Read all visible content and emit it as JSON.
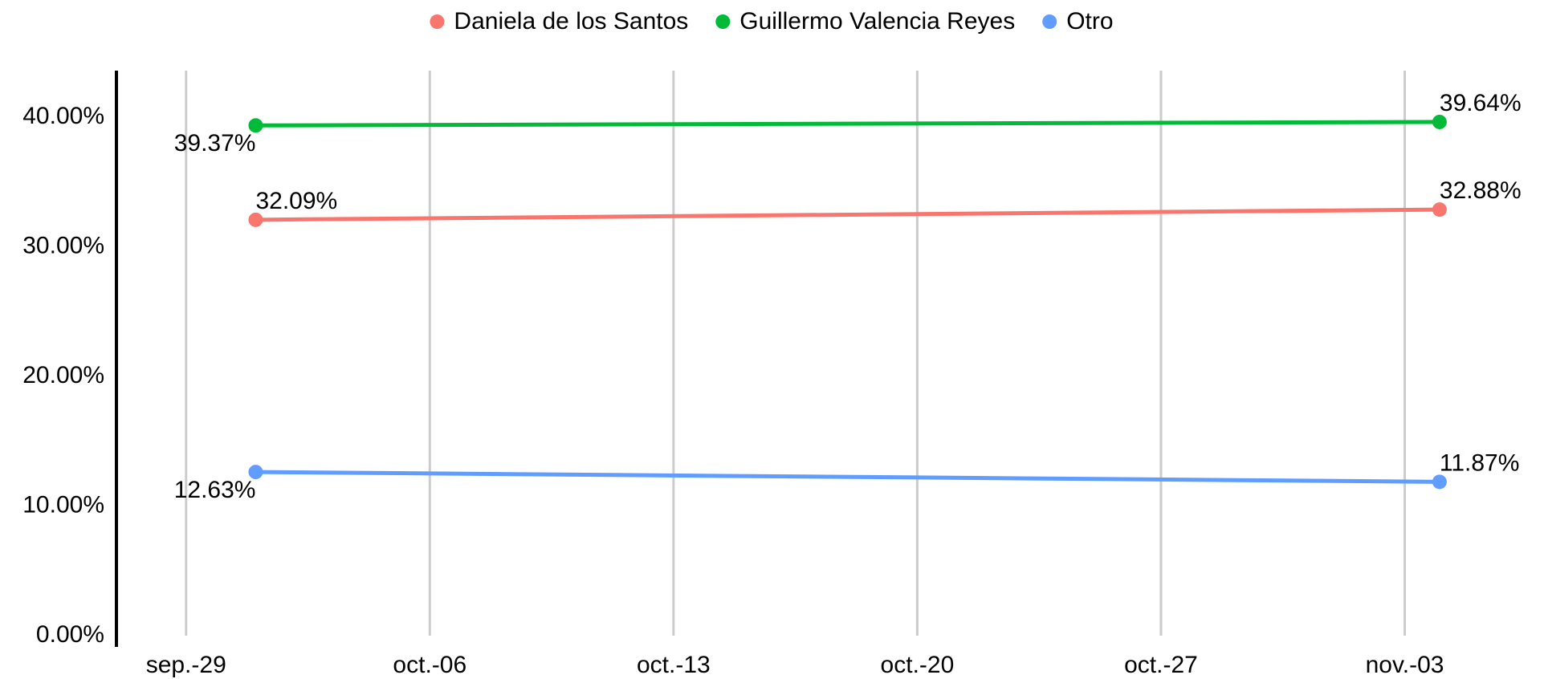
{
  "chart_data": {
    "type": "line",
    "x": [
      "10-01",
      "11-04"
    ],
    "xlim": [
      "09-27",
      "11-07"
    ],
    "xticks": [
      {
        "value": "09-29",
        "label": "sep.-29"
      },
      {
        "value": "10-06",
        "label": "oct.-06"
      },
      {
        "value": "10-13",
        "label": "oct.-13"
      },
      {
        "value": "10-20",
        "label": "oct.-20"
      },
      {
        "value": "10-27",
        "label": "oct.-27"
      },
      {
        "value": "11-03",
        "label": "nov.-03"
      }
    ],
    "ylim": [
      0,
      43.6
    ],
    "yticks": [
      {
        "value": 0,
        "label": "0.00%"
      },
      {
        "value": 10,
        "label": "10.00%"
      },
      {
        "value": 20,
        "label": "20.00%"
      },
      {
        "value": 30,
        "label": "30.00%"
      },
      {
        "value": 40,
        "label": "40.00%"
      }
    ],
    "grid": "x",
    "legend": "top",
    "series": [
      {
        "name": "Daniela de los Santos",
        "color": "#F8766D",
        "values": [
          32.09,
          32.88
        ],
        "value_labels": [
          "32.09%",
          "32.88%"
        ]
      },
      {
        "name": "Guillermo Valencia Reyes",
        "color": "#00BA38",
        "values": [
          39.37,
          39.64
        ],
        "value_labels": [
          "39.37%",
          "39.64%"
        ]
      },
      {
        "name": "Otro",
        "color": "#619CFF",
        "values": [
          12.63,
          11.87
        ],
        "value_labels": [
          "12.63%",
          "11.87%"
        ]
      }
    ]
  }
}
